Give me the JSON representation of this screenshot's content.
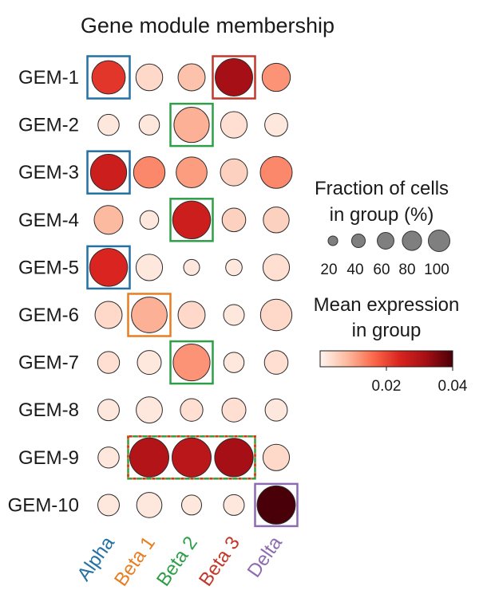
{
  "chart_data": {
    "type": "dotplot",
    "title": "Gene module membership",
    "rows": [
      "GEM-1",
      "GEM-2",
      "GEM-3",
      "GEM-4",
      "GEM-5",
      "GEM-6",
      "GEM-7",
      "GEM-8",
      "GEM-9",
      "GEM-10"
    ],
    "columns": [
      "Alpha",
      "Beta 1",
      "Beta 2",
      "Beta 3",
      "Delta"
    ],
    "column_colors": [
      "#2471a3",
      "#e67e22",
      "#2e9e48",
      "#c0392b",
      "#8e6bb0"
    ],
    "fraction_of_cells_pct": [
      [
        70,
        45,
        46,
        88,
        50
      ],
      [
        28,
        26,
        78,
        44,
        33
      ],
      [
        82,
        62,
        60,
        46,
        64
      ],
      [
        52,
        22,
        90,
        35,
        42
      ],
      [
        90,
        44,
        16,
        17,
        44
      ],
      [
        46,
        80,
        46,
        27,
        62
      ],
      [
        30,
        36,
        85,
        26,
        35
      ],
      [
        29,
        43,
        32,
        36,
        31
      ],
      [
        28,
        96,
        96,
        93,
        44
      ],
      [
        29,
        40,
        25,
        27,
        92
      ]
    ],
    "mean_expression": [
      [
        0.022,
        0.004,
        0.007,
        0.032,
        0.012
      ],
      [
        0.002,
        0.002,
        0.009,
        0.003,
        0.002
      ],
      [
        0.026,
        0.013,
        0.011,
        0.005,
        0.013
      ],
      [
        0.008,
        0.002,
        0.026,
        0.005,
        0.005
      ],
      [
        0.024,
        0.002,
        0.002,
        0.002,
        0.003
      ],
      [
        0.004,
        0.009,
        0.004,
        0.002,
        0.004
      ],
      [
        0.003,
        0.002,
        0.012,
        0.002,
        0.003
      ],
      [
        0.002,
        0.002,
        0.003,
        0.003,
        0.002
      ],
      [
        0.002,
        0.03,
        0.029,
        0.032,
        0.004
      ],
      [
        0.002,
        0.002,
        0.002,
        0.002,
        0.04
      ]
    ],
    "highlight_boxes": [
      {
        "row": "GEM-1",
        "columns": [
          "Alpha"
        ],
        "color": "#2471a3"
      },
      {
        "row": "GEM-1",
        "columns": [
          "Beta 3"
        ],
        "color": "#c0392b"
      },
      {
        "row": "GEM-2",
        "columns": [
          "Beta 2"
        ],
        "color": "#2e9e48"
      },
      {
        "row": "GEM-3",
        "columns": [
          "Alpha"
        ],
        "color": "#2471a3"
      },
      {
        "row": "GEM-4",
        "columns": [
          "Beta 2"
        ],
        "color": "#2e9e48"
      },
      {
        "row": "GEM-5",
        "columns": [
          "Alpha"
        ],
        "color": "#2471a3"
      },
      {
        "row": "GEM-6",
        "columns": [
          "Beta 1"
        ],
        "color": "#e67e22"
      },
      {
        "row": "GEM-7",
        "columns": [
          "Beta 2"
        ],
        "color": "#2e9e48"
      },
      {
        "row": "GEM-9",
        "columns": [
          "Beta 1",
          "Beta 2",
          "Beta 3"
        ],
        "color": "multicolor-dashed"
      },
      {
        "row": "GEM-10",
        "columns": [
          "Delta"
        ],
        "color": "#8e6bb0"
      }
    ],
    "size_legend": {
      "title_line1": "Fraction of cells",
      "title_line2": "in group (%)",
      "values": [
        20,
        40,
        60,
        80,
        100
      ],
      "labels": [
        "20",
        "40",
        "60",
        "80",
        "100"
      ]
    },
    "color_legend": {
      "title_line1": "Mean expression",
      "title_line2": "in group",
      "range": [
        0,
        0.04
      ],
      "ticks": [
        0.02,
        0.04
      ],
      "tick_labels": [
        "0.02",
        "0.04"
      ],
      "colormap": [
        "#fff5f0",
        "#fcbba1",
        "#fb6a4a",
        "#d9241f",
        "#a50f15",
        "#4a0008"
      ]
    }
  }
}
